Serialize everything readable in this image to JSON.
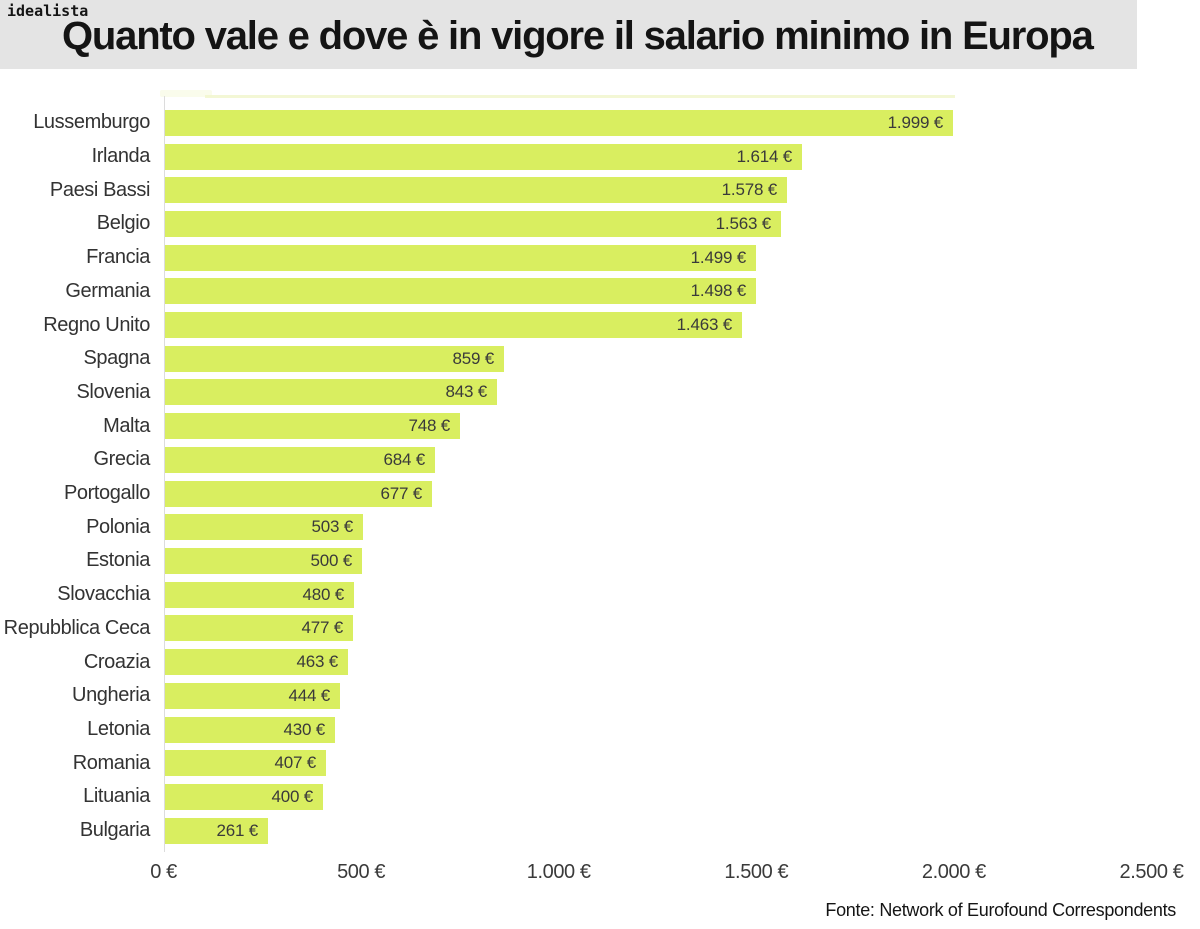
{
  "logo": "idealista",
  "title": "Quanto vale e dove è in vigore il salario minimo in Europa",
  "source": "Fonte: Network of Eurofound Correspondents",
  "chart_data": {
    "type": "bar",
    "orientation": "horizontal",
    "title": "Quanto vale e dove è in vigore il salario minimo in Europa",
    "categories": [
      "Lussemburgo",
      "Irlanda",
      "Paesi Bassi",
      "Belgio",
      "Francia",
      "Germania",
      "Regno Unito",
      "Spagna",
      "Slovenia",
      "Malta",
      "Grecia",
      "Portogallo",
      "Polonia",
      "Estonia",
      "Slovacchia",
      "Repubblica Ceca",
      "Croazia",
      "Ungheria",
      "Letonia",
      "Romania",
      "Lituania",
      "Bulgaria"
    ],
    "values": [
      1999,
      1614,
      1578,
      1563,
      1499,
      1498,
      1463,
      859,
      843,
      748,
      684,
      677,
      503,
      500,
      480,
      477,
      463,
      444,
      430,
      407,
      400,
      261
    ],
    "value_labels": [
      "1.999 €",
      "1.614 €",
      "1.578 €",
      "1.563 €",
      "1.499 €",
      "1.498 €",
      "1.463 €",
      "859 €",
      "843 €",
      "748 €",
      "684 €",
      "677 €",
      "503 €",
      "500 €",
      "480 €",
      "477 €",
      "463 €",
      "444 €",
      "430 €",
      "407 €",
      "400 €",
      "261 €"
    ],
    "unit": "€",
    "xlim": [
      0,
      2500
    ],
    "x_ticks": [
      "0 €",
      "500 €",
      "1.000 €",
      "1.500 €",
      "2.000 €",
      "2.500 €"
    ],
    "x_tick_values": [
      0,
      500,
      1000,
      1500,
      2000,
      2500
    ],
    "grid": "off",
    "legend": "none",
    "bar_color": "#d9ee60",
    "text_color": "#3a3a3a",
    "header_band_color": "#e4e4e4",
    "source_label": "Fonte: Network of Eurofound Correspondents"
  }
}
